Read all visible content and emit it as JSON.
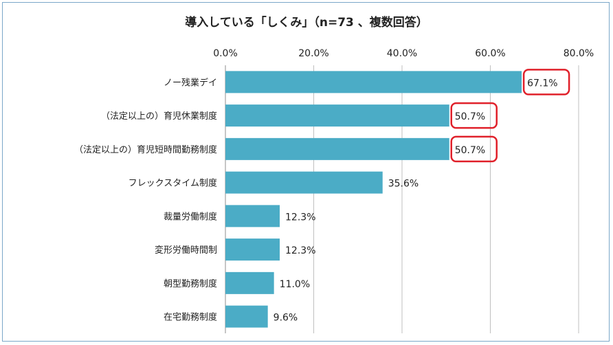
{
  "chart_data": {
    "type": "bar",
    "orientation": "horizontal",
    "title": "導入している「しくみ」（n=73 、複数回答）",
    "categories": [
      "ノー残業デイ",
      "（法定以上の）育児休業制度",
      "（法定以上の）育児短時間勤務制度",
      "フレックスタイム制度",
      "裁量労働制度",
      "変形労働時間制",
      "朝型勤務制度",
      "在宅勤務制度"
    ],
    "values": [
      67.1,
      50.7,
      50.7,
      35.6,
      12.3,
      12.3,
      11.0,
      9.6
    ],
    "value_labels": [
      "67.1%",
      "50.7%",
      "50.7%",
      "35.6%",
      "12.3%",
      "12.3%",
      "11.0%",
      "9.6%"
    ],
    "highlighted": [
      true,
      true,
      true,
      false,
      false,
      false,
      false,
      false
    ],
    "xlim": [
      0,
      80
    ],
    "xticks": [
      "0.0%",
      "20.0%",
      "40.0%",
      "60.0%",
      "80.0%"
    ],
    "xlabel": "",
    "ylabel": "",
    "grid": true,
    "legend": "none",
    "bar_color": "#4bacc6",
    "highlight_color": "#e0202a",
    "grid_color": "#bfbfbf"
  }
}
